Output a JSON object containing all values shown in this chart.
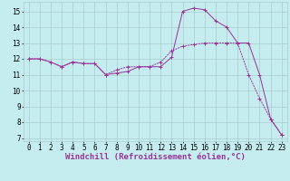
{
  "xlabel": "Windchill (Refroidissement éolien,°C)",
  "background_color": "#c5ecee",
  "grid_color": "#aacccc",
  "line_color": "#993399",
  "xlim": [
    -0.5,
    23.5
  ],
  "ylim": [
    6.8,
    15.6
  ],
  "yticks": [
    7,
    8,
    9,
    10,
    11,
    12,
    13,
    14,
    15
  ],
  "xticks": [
    0,
    1,
    2,
    3,
    4,
    5,
    6,
    7,
    8,
    9,
    10,
    11,
    12,
    13,
    14,
    15,
    16,
    17,
    18,
    19,
    20,
    21,
    22,
    23
  ],
  "line1_x": [
    0,
    1,
    2,
    3,
    4,
    5,
    6,
    7,
    8,
    9,
    10,
    11,
    12,
    13,
    14,
    15,
    16,
    17,
    18,
    19,
    20,
    21,
    22,
    23
  ],
  "line1_y": [
    12.0,
    12.0,
    11.8,
    11.5,
    11.8,
    11.7,
    11.7,
    11.0,
    11.1,
    11.2,
    11.5,
    11.5,
    11.5,
    12.1,
    15.0,
    15.2,
    15.1,
    14.4,
    14.0,
    13.0,
    13.0,
    11.0,
    8.2,
    7.2
  ],
  "line2_x": [
    0,
    1,
    2,
    3,
    4,
    5,
    6,
    7,
    8,
    9,
    10,
    11,
    12,
    13,
    14,
    15,
    16,
    17,
    18,
    19,
    20,
    21,
    22,
    23
  ],
  "line2_y": [
    12.0,
    12.0,
    11.8,
    11.5,
    11.8,
    11.7,
    11.7,
    11.0,
    11.3,
    11.5,
    11.5,
    11.5,
    11.8,
    12.5,
    12.8,
    12.9,
    13.0,
    13.0,
    13.0,
    13.0,
    11.0,
    9.5,
    8.2,
    7.2
  ],
  "ticklabel_fontsize": 5.5,
  "xlabel_fontsize": 6.5
}
